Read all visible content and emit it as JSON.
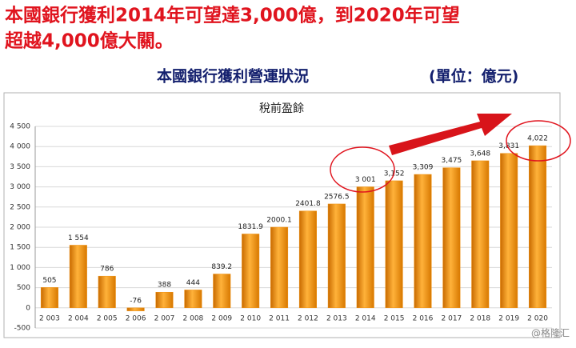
{
  "slide": {
    "headline": [
      "本國銀行獲利2014年可望達3,000億，到2020年可望",
      "超越4,000億大關。"
    ],
    "subtitle": "本國銀行獲利營運狀況",
    "unit": "(單位：億元)",
    "watermark": "@格隆汇"
  },
  "chart_data": {
    "type": "bar",
    "title": "稅前盈餘",
    "categories": [
      "2 003",
      "2 004",
      "2 005",
      "2 006",
      "2 007",
      "2 008",
      "2 009",
      "2 010",
      "2 011",
      "2 012",
      "2 013",
      "2 014",
      "2 015",
      "2 016",
      "2 017",
      "2 018",
      "2 019",
      "2 020"
    ],
    "values": [
      505,
      1554,
      786,
      -76,
      388,
      444,
      839.2,
      1831.9,
      2000.1,
      2401.8,
      2576.5,
      3001,
      3152,
      3309,
      3475,
      3648,
      3831,
      4022
    ],
    "value_labels": [
      "505",
      "1 554",
      "786",
      "-76",
      "388",
      "444",
      "839.2",
      "1831.9",
      "2000.1",
      "2401.8",
      "2576.5",
      "3 001",
      "3,152",
      "3,309",
      "3,475",
      "3,648",
      "3,831",
      "4,022"
    ],
    "color": "#f0900f",
    "ylim": [
      -500,
      4500
    ],
    "yticks": [
      -500,
      0,
      500,
      {
        "value": 1000,
        "label": "1 000"
      },
      {
        "value": 1500,
        "label": "1 500"
      },
      {
        "value": 2000,
        "label": "2 000"
      },
      {
        "value": 2500,
        "label": "2 500"
      },
      {
        "value": 3000,
        "label": "3 000"
      },
      {
        "value": 3500,
        "label": "3 500"
      },
      {
        "value": 4000,
        "label": "4 000"
      },
      {
        "value": 4500,
        "label": "4 500"
      }
    ],
    "grid": true
  }
}
